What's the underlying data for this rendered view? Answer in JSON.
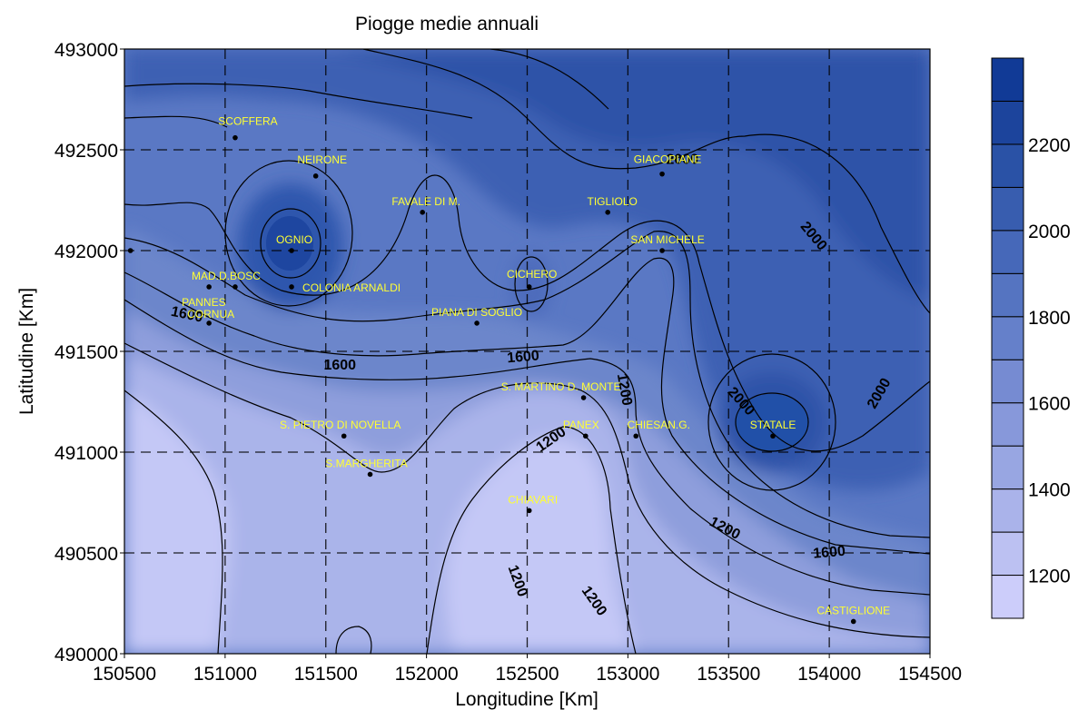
{
  "chart_data": {
    "type": "contour",
    "title": "Piogge medie annuali",
    "xlabel": "Longitudine [Km]",
    "ylabel": "Latitudine [Km]",
    "xlim": [
      150500,
      154500
    ],
    "ylim": [
      490000,
      493000
    ],
    "x_ticks": [
      "150500",
      "151000",
      "151500",
      "152000",
      "152500",
      "153000",
      "153500",
      "154000",
      "154500"
    ],
    "y_ticks": [
      "490000",
      "490500",
      "491000",
      "491500",
      "492000",
      "492500",
      "493000"
    ],
    "grid": true,
    "colorbar": {
      "levels": [
        1100,
        1200,
        1300,
        1400,
        1500,
        1600,
        1700,
        1800,
        1900,
        2000,
        2100,
        2200,
        2300
      ],
      "labels": [
        "1200",
        "1400",
        "1600",
        "1800",
        "2000",
        "2200"
      ],
      "colors": [
        "#cccdfa",
        "#bcc1f2",
        "#aab3ea",
        "#98a6e2",
        "#8798da",
        "#768bd2",
        "#6580ca",
        "#5574c1",
        "#4668b9",
        "#385daf",
        "#2a52a6",
        "#1c449c",
        "#113a96"
      ]
    },
    "contour_labels": [
      {
        "text": "2000",
        "x": 153270,
        "y": 492450
      },
      {
        "text": "2000",
        "x": 153920,
        "y": 492070
      },
      {
        "text": "2000",
        "x": 153560,
        "y": 491250
      },
      {
        "text": "2000",
        "x": 154250,
        "y": 491290
      },
      {
        "text": "1600",
        "x": 150810,
        "y": 491680
      },
      {
        "text": "1600",
        "x": 151570,
        "y": 491430
      },
      {
        "text": "1600",
        "x": 152480,
        "y": 491470
      },
      {
        "text": "1200",
        "x": 152980,
        "y": 491310
      },
      {
        "text": "1200",
        "x": 152620,
        "y": 491060
      },
      {
        "text": "1200",
        "x": 153480,
        "y": 490620
      },
      {
        "text": "1600",
        "x": 154000,
        "y": 490500
      },
      {
        "text": "1200",
        "x": 152450,
        "y": 490360
      },
      {
        "text": "1200",
        "x": 152830,
        "y": 490260
      }
    ],
    "stations": [
      {
        "name": "SCOFFERA",
        "x": 151050,
        "y": 492560
      },
      {
        "name": "NEIRONE",
        "x": 151450,
        "y": 492370
      },
      {
        "name": "FAVALE DI M.",
        "x": 151980,
        "y": 492190
      },
      {
        "name": "TIGLIOLO",
        "x": 152900,
        "y": 492190
      },
      {
        "name": "GIACOPIANE",
        "x": 153170,
        "y": 492380
      },
      {
        "name": "SAN MICHELE",
        "x": 153170,
        "y": 492000
      },
      {
        "name": "OGNIO",
        "x": 151330,
        "y": 492000
      },
      {
        "name": "CICHERO",
        "x": 152510,
        "y": 491820
      },
      {
        "name": "MAD.D.BOSC",
        "x": 151050,
        "y": 491820
      },
      {
        "name": "COLONIA ARNALDI",
        "x": 151330,
        "y": 491820
      },
      {
        "name": "PANNES",
        "x": 150920,
        "y": 491820
      },
      {
        "name": "CORNUA",
        "x": 150920,
        "y": 491640
      },
      {
        "name": "PIANA DI SOGLIO",
        "x": 152250,
        "y": 491640
      },
      {
        "name": "S. MARTINO D. MONTE",
        "x": 152780,
        "y": 491270
      },
      {
        "name": "S. PIETRO DI NOVELLA",
        "x": 151590,
        "y": 491080
      },
      {
        "name": "PANEX",
        "x": 152790,
        "y": 491080
      },
      {
        "name": "CHIESAN.G.",
        "x": 153040,
        "y": 491080
      },
      {
        "name": "STATALE",
        "x": 153720,
        "y": 491080
      },
      {
        "name": "S.MARGHERITA",
        "x": 151720,
        "y": 490890
      },
      {
        "name": "CHIAVARI",
        "x": 152510,
        "y": 490710
      },
      {
        "name": "CASTIGLIONE",
        "x": 154120,
        "y": 490160
      },
      {
        "name": "",
        "x": 150530,
        "y": 492000
      }
    ]
  }
}
